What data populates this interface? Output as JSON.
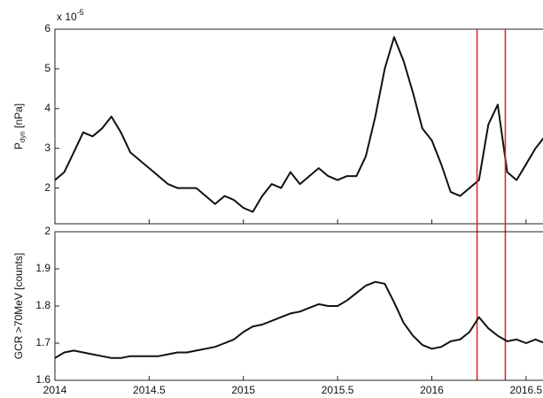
{
  "chart_data": [
    {
      "type": "line",
      "ylabel": {
        "main": "P",
        "sub": "dyn",
        "rest": " [nPa]"
      },
      "multiplier": {
        "base": "x 10",
        "exponent": "-5"
      },
      "xlim": [
        2014,
        2016.59
      ],
      "ylim": [
        1.1,
        6
      ],
      "yticks": [
        2,
        3,
        4,
        5,
        6
      ],
      "vlines": [
        2016.24,
        2016.39
      ],
      "vline_color": "#e02020",
      "x": [
        2014,
        2014.05,
        2014.1,
        2014.15,
        2014.2,
        2014.25,
        2014.3,
        2014.35,
        2014.4,
        2014.45,
        2014.5,
        2014.55,
        2014.6,
        2014.65,
        2014.7,
        2014.75,
        2014.8,
        2014.85,
        2014.9,
        2014.95,
        2015,
        2015.05,
        2015.1,
        2015.15,
        2015.2,
        2015.25,
        2015.3,
        2015.35,
        2015.4,
        2015.45,
        2015.5,
        2015.55,
        2015.6,
        2015.65,
        2015.7,
        2015.75,
        2015.8,
        2015.85,
        2015.9,
        2015.95,
        2016,
        2016.05,
        2016.1,
        2016.15,
        2016.2,
        2016.25,
        2016.3,
        2016.35,
        2016.4,
        2016.45,
        2016.5,
        2016.55,
        2016.6
      ],
      "series": [
        {
          "color": "#111111",
          "values": [
            2.2,
            2.4,
            2.9,
            3.4,
            3.3,
            3.5,
            3.8,
            3.4,
            2.9,
            2.7,
            2.5,
            2.3,
            2.1,
            2.0,
            2.0,
            2.0,
            1.8,
            1.6,
            1.8,
            1.7,
            1.5,
            1.4,
            1.8,
            2.1,
            2.0,
            2.4,
            2.1,
            2.3,
            2.5,
            2.3,
            2.2,
            2.3,
            2.3,
            2.8,
            3.8,
            5.0,
            5.8,
            5.2,
            4.4,
            3.5,
            3.2,
            2.6,
            1.9,
            1.8,
            2.0,
            2.2,
            3.6,
            4.1,
            2.4,
            2.2,
            2.6,
            3.0,
            3.3
          ]
        }
      ]
    },
    {
      "type": "line",
      "ylabel": "GCR >70MeV [counts]",
      "xlim": [
        2014,
        2016.59
      ],
      "ylim": [
        1.6,
        2
      ],
      "xticks": [
        2014,
        2014.5,
        2015,
        2015.5,
        2016,
        2016.5
      ],
      "yticks": [
        1.6,
        1.7,
        1.8,
        1.9,
        2
      ],
      "x": [
        2014,
        2014.05,
        2014.1,
        2014.15,
        2014.2,
        2014.25,
        2014.3,
        2014.35,
        2014.4,
        2014.45,
        2014.5,
        2014.55,
        2014.6,
        2014.65,
        2014.7,
        2014.75,
        2014.8,
        2014.85,
        2014.9,
        2014.95,
        2015,
        2015.05,
        2015.1,
        2015.15,
        2015.2,
        2015.25,
        2015.3,
        2015.35,
        2015.4,
        2015.45,
        2015.5,
        2015.55,
        2015.6,
        2015.65,
        2015.7,
        2015.75,
        2015.8,
        2015.85,
        2015.9,
        2015.95,
        2016,
        2016.05,
        2016.1,
        2016.15,
        2016.2,
        2016.25,
        2016.3,
        2016.35,
        2016.4,
        2016.45,
        2016.5,
        2016.55,
        2016.6
      ],
      "series": [
        {
          "color": "#111111",
          "values": [
            1.66,
            1.675,
            1.68,
            1.675,
            1.67,
            1.665,
            1.66,
            1.66,
            1.665,
            1.665,
            1.665,
            1.665,
            1.67,
            1.675,
            1.675,
            1.68,
            1.685,
            1.69,
            1.7,
            1.71,
            1.73,
            1.745,
            1.75,
            1.76,
            1.77,
            1.78,
            1.785,
            1.795,
            1.805,
            1.8,
            1.8,
            1.815,
            1.835,
            1.855,
            1.865,
            1.86,
            1.81,
            1.755,
            1.72,
            1.695,
            1.685,
            1.69,
            1.705,
            1.71,
            1.73,
            1.77,
            1.74,
            1.72,
            1.705,
            1.71,
            1.7,
            1.71,
            1.7
          ]
        }
      ]
    }
  ]
}
